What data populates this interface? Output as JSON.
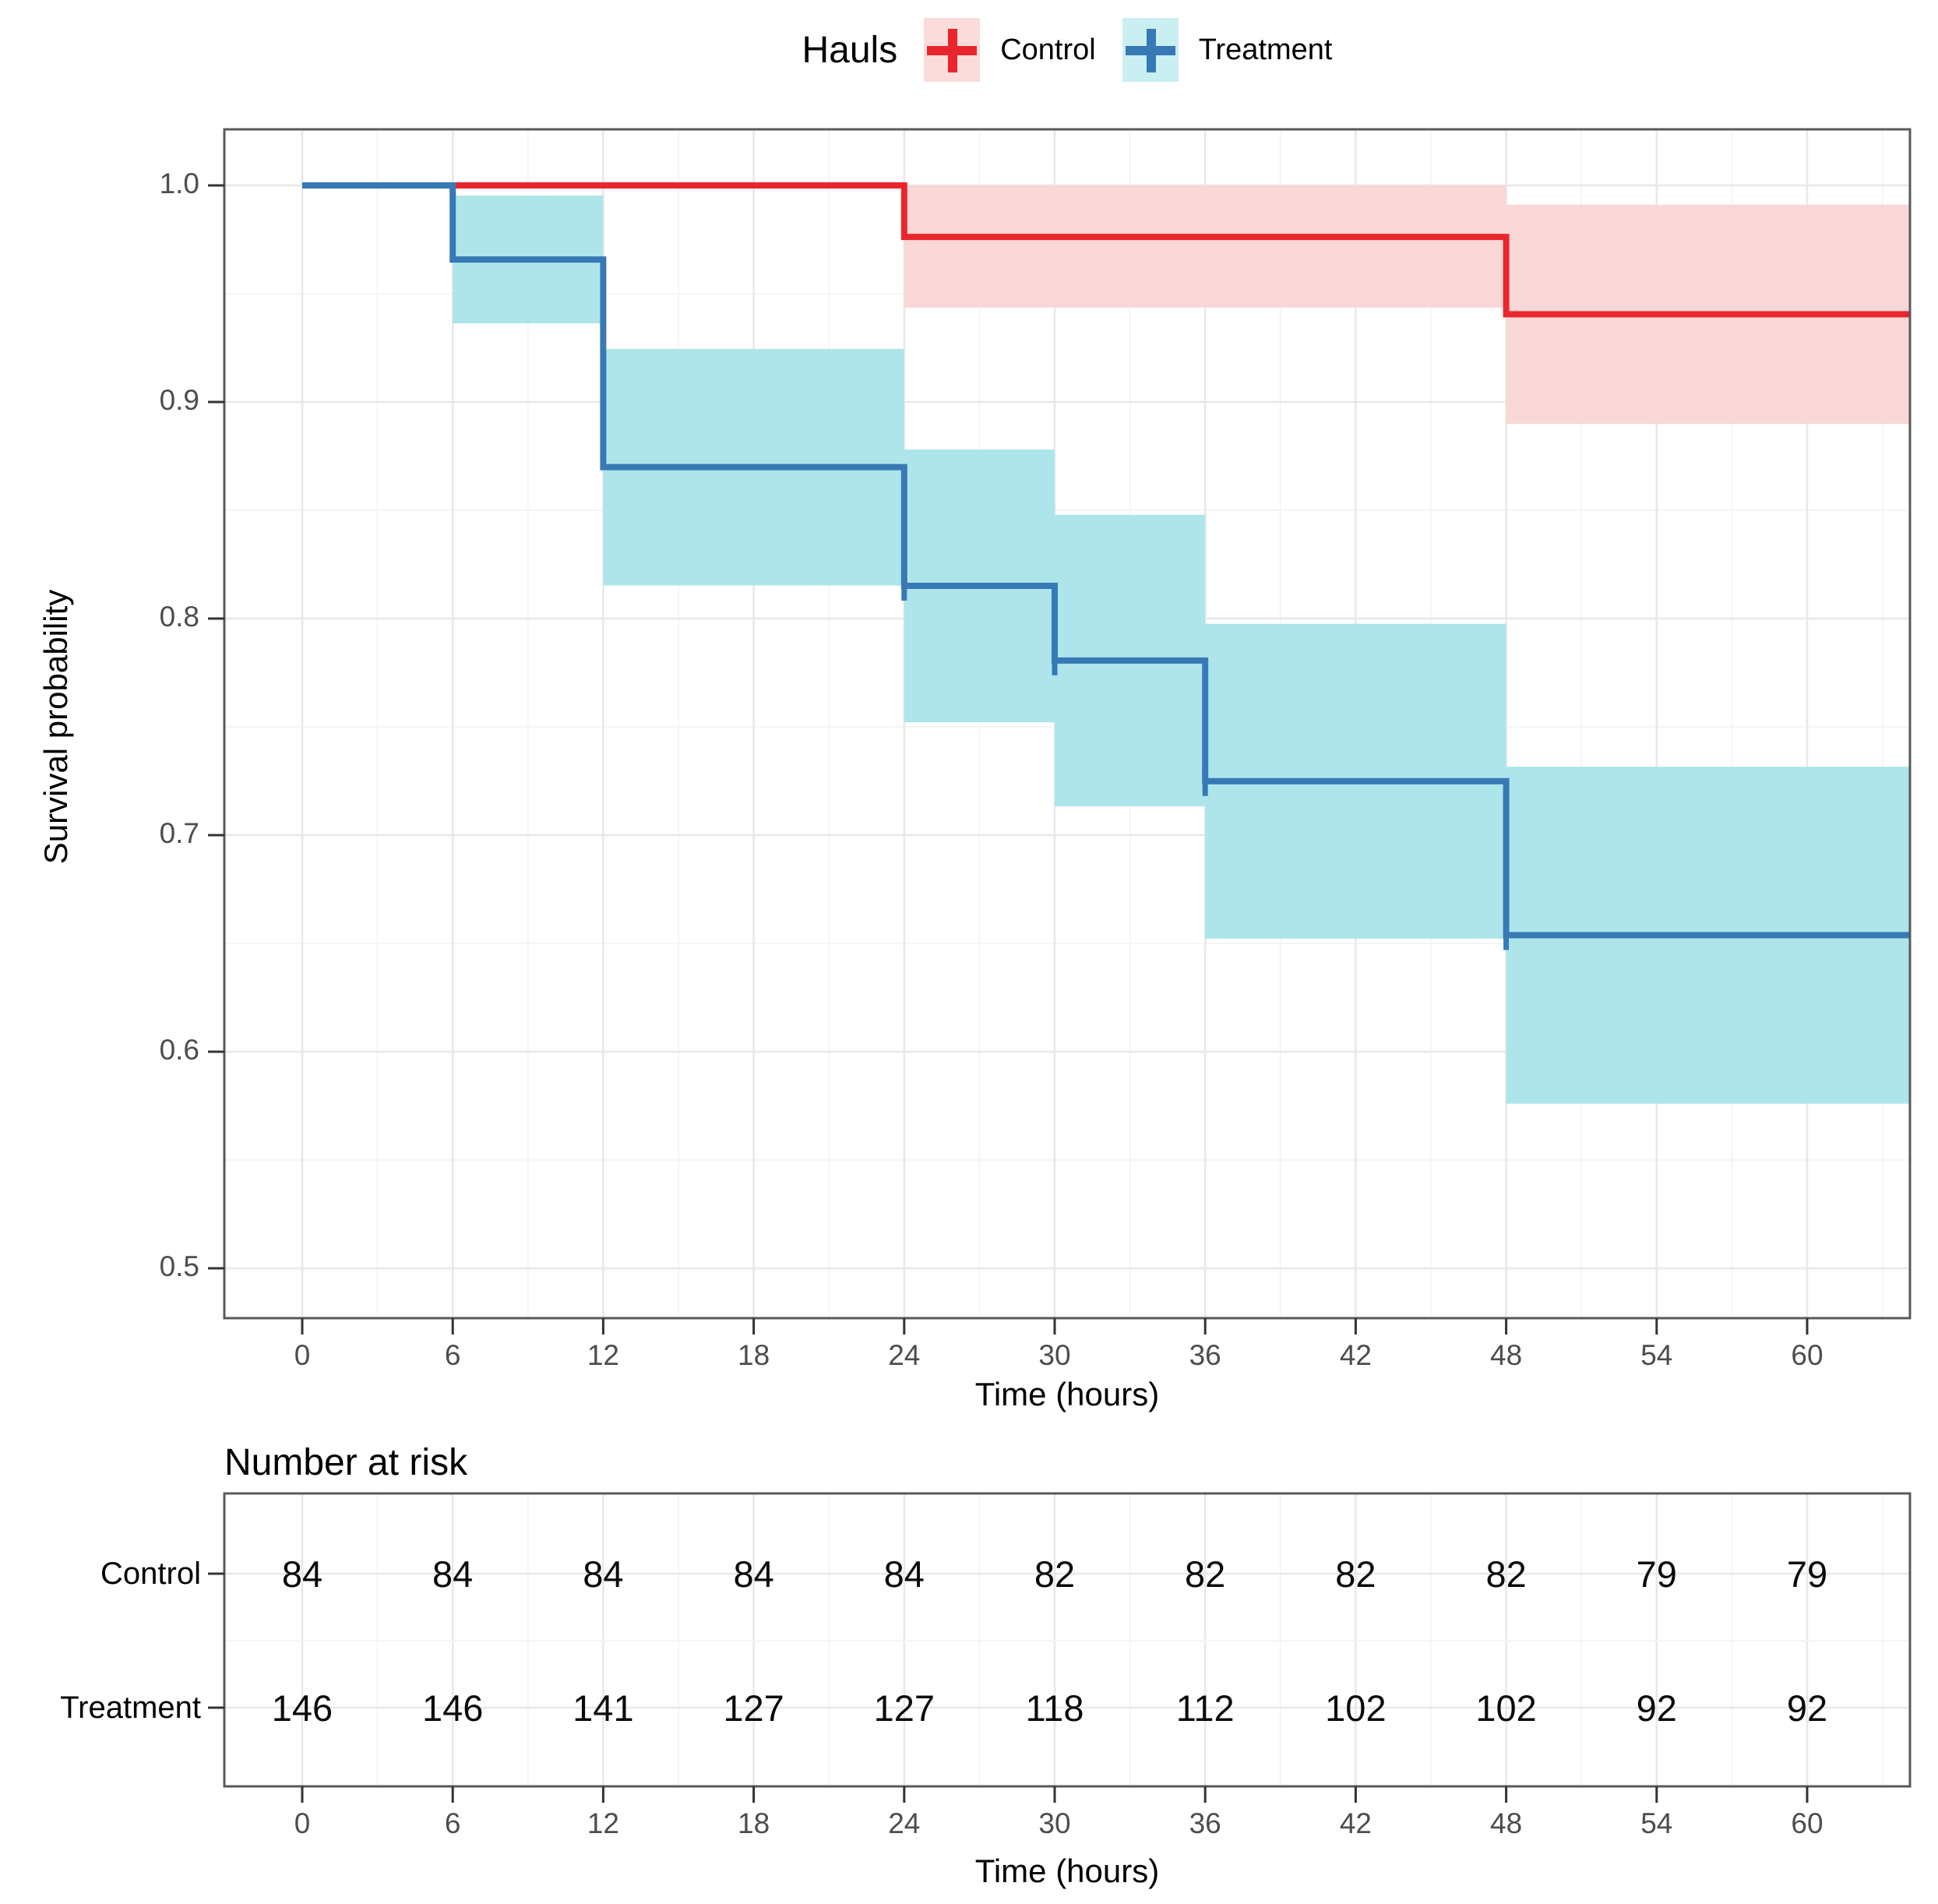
{
  "chart_data": {
    "type": "line",
    "subtype": "kaplan-meier-survival-steps",
    "legend_title": "Hauls",
    "xlabel": "Time (hours)",
    "ylabel": "Survival probability",
    "xlim": [
      -3,
      64.1
    ],
    "ylim": [
      0.477,
      1.025
    ],
    "x_ticks": [
      0,
      6,
      12,
      18,
      24,
      30,
      36,
      42,
      48,
      54,
      60
    ],
    "x_minor_ticks": [
      3,
      9,
      15,
      21,
      27,
      33,
      39,
      45,
      51,
      57,
      63
    ],
    "y_ticks": [
      1.0,
      0.9,
      0.8,
      0.7,
      0.6,
      0.5
    ],
    "y_minor_ticks": [
      0.95,
      0.85,
      0.75,
      0.65,
      0.55
    ],
    "grid": true,
    "legend_position": "top",
    "series": [
      {
        "name": "Control",
        "steps": [
          [
            0,
            1.0
          ],
          [
            24,
            0.9762
          ],
          [
            48,
            0.9405
          ]
        ],
        "end_time": 64.1,
        "ci_bands": [
          [
            24,
            48,
            0.9436,
            1.0
          ],
          [
            48,
            64.1,
            0.8899,
            0.9911
          ]
        ],
        "censor_marks": []
      },
      {
        "name": "Treatment",
        "steps": [
          [
            0,
            1.0
          ],
          [
            6,
            0.9658
          ],
          [
            12,
            0.8699
          ],
          [
            24,
            0.8151
          ],
          [
            30,
            0.7806
          ],
          [
            36,
            0.7249
          ],
          [
            48,
            0.6538
          ]
        ],
        "end_time": 64.1,
        "ci_bands": [
          [
            6,
            12,
            0.9363,
            0.9953
          ],
          [
            12,
            24,
            0.8153,
            0.9245
          ],
          [
            24,
            30,
            0.7521,
            0.8781
          ],
          [
            30,
            36,
            0.7133,
            0.8479
          ],
          [
            36,
            48,
            0.6522,
            0.7976
          ],
          [
            48,
            64.1,
            0.576,
            0.7316
          ]
        ],
        "censor_marks": [
          [
            24,
            0.8151
          ],
          [
            30,
            0.7806
          ],
          [
            36,
            0.7249
          ],
          [
            48,
            0.6538
          ]
        ]
      }
    ],
    "risk_table": {
      "title": "Number at risk",
      "xlabel": "Time (hours)",
      "times": [
        0,
        6,
        12,
        18,
        24,
        30,
        36,
        42,
        48,
        54,
        60
      ],
      "rows": [
        {
          "label": "Control",
          "values": [
            84,
            84,
            84,
            84,
            84,
            82,
            82,
            82,
            82,
            79,
            79
          ]
        },
        {
          "label": "Treatment",
          "values": [
            146,
            146,
            141,
            127,
            127,
            118,
            112,
            102,
            102,
            92,
            92
          ]
        }
      ]
    }
  },
  "colors": {
    "control_line": "#E9262E",
    "control_band": "#F9D7D6",
    "treatment_line": "#3779B5",
    "treatment_band": "#ADE5EB",
    "legend_key_control_bg": "#FBDCDB",
    "legend_key_treatment_bg": "#C9EFF3",
    "grid_major": "#E8E8E8",
    "grid_minor": "#F5F5F5",
    "panel_border": "#595959",
    "axis_tick": "#333333",
    "axis_text": "#4d4d4d",
    "text": "#000000"
  }
}
